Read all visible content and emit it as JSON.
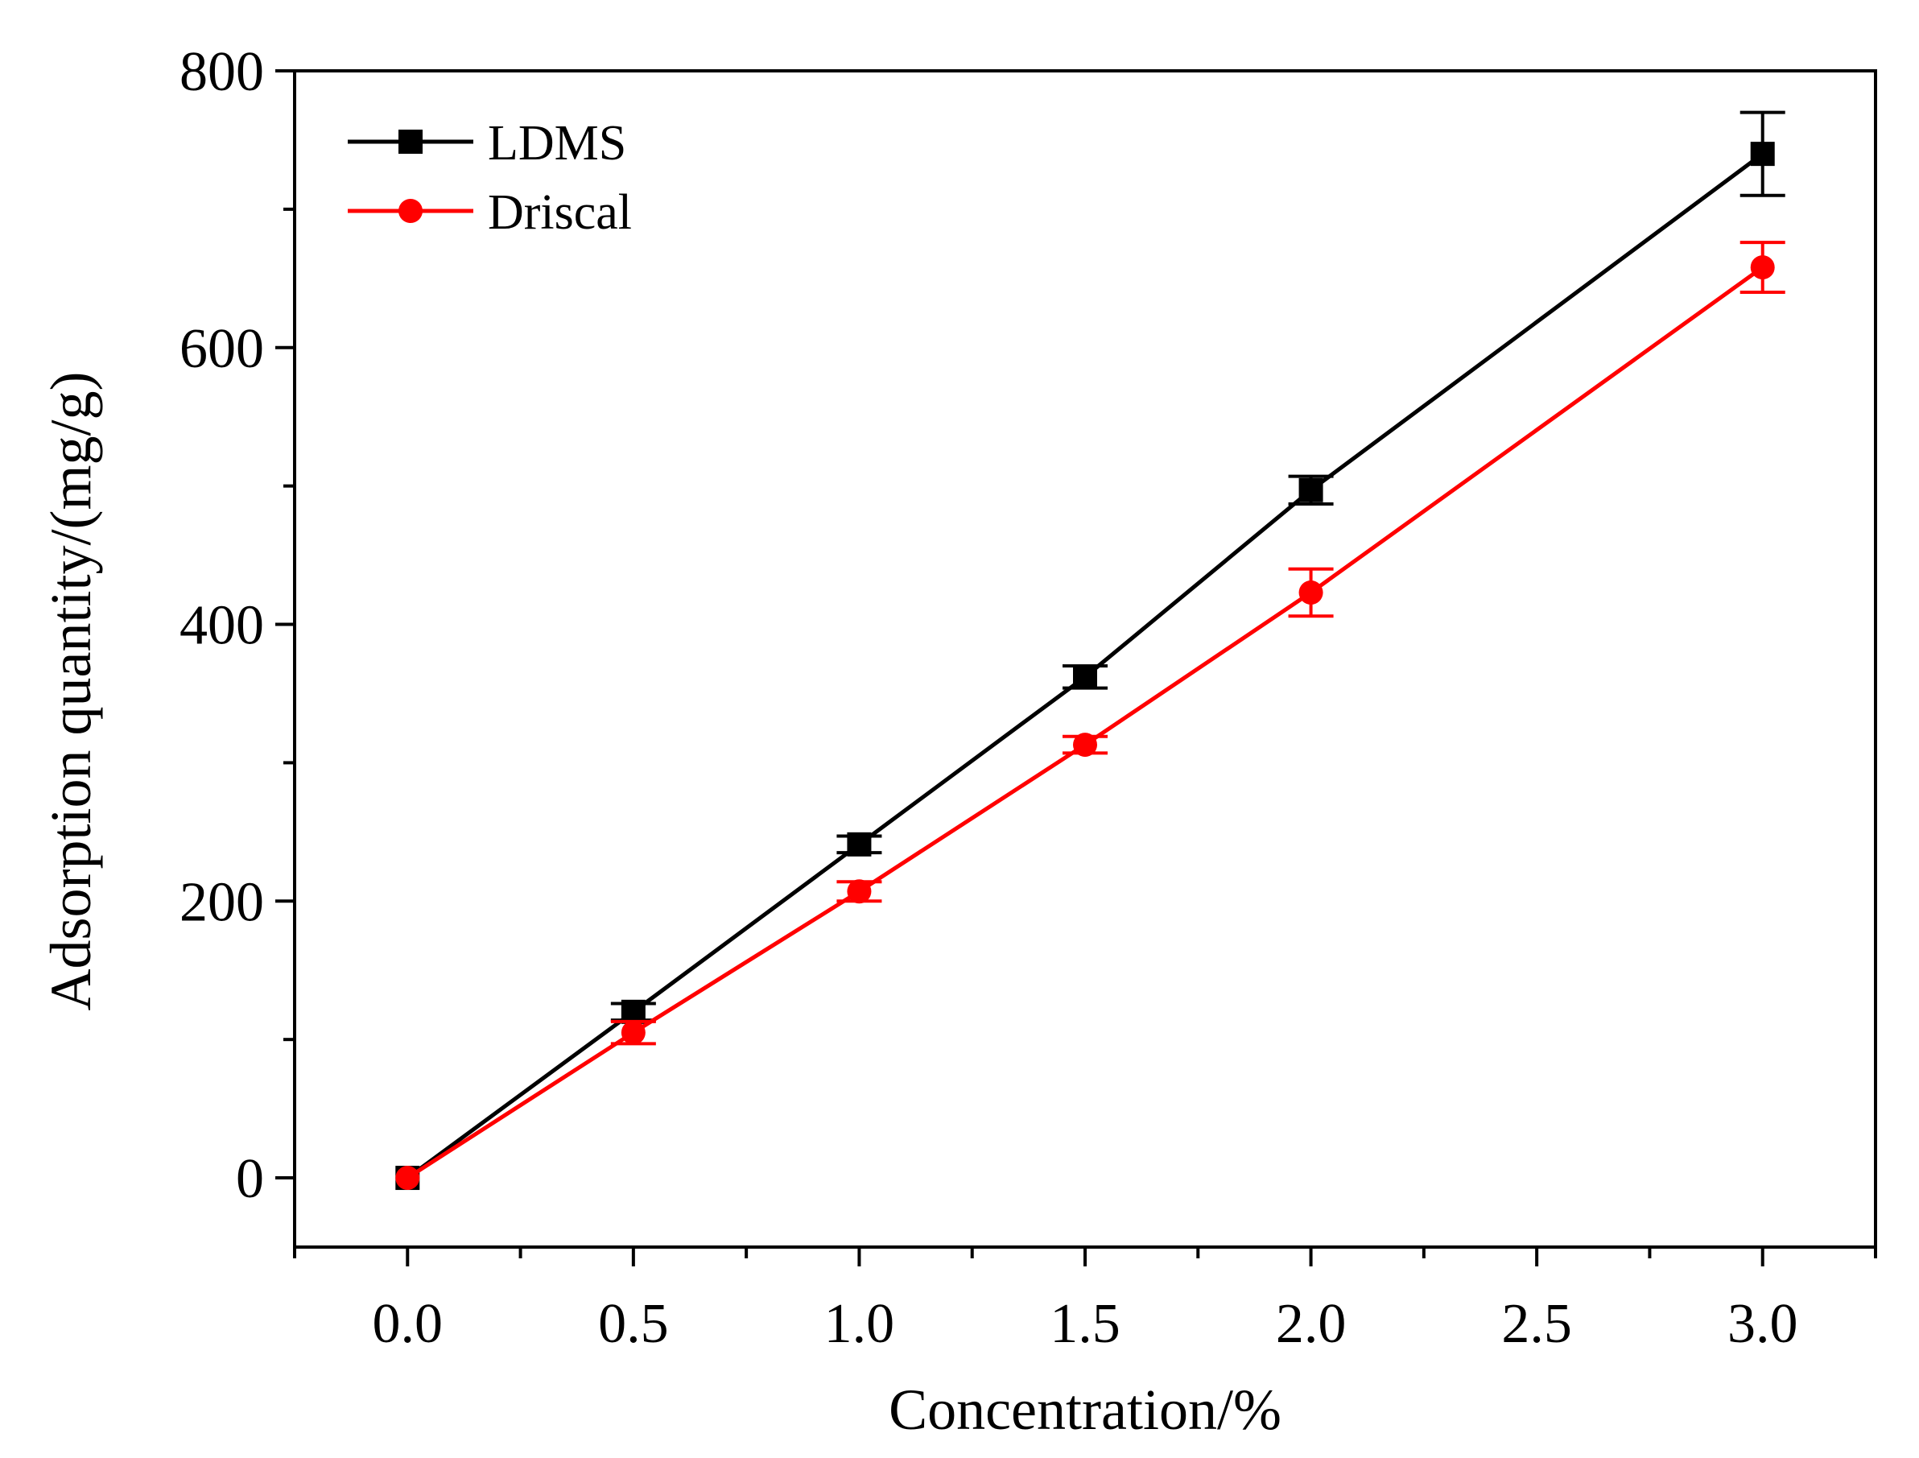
{
  "chart_data": {
    "type": "line",
    "title": "",
    "xlabel": "Concentration/%",
    "ylabel": "Adsorption quantity/(mg/g)",
    "xlim": [
      -0.25,
      3.25
    ],
    "ylim": [
      -50,
      800
    ],
    "x_major_ticks": [
      0.0,
      0.5,
      1.0,
      1.5,
      2.0,
      2.5,
      3.0
    ],
    "x_tick_labels": [
      "0.0",
      "0.5",
      "1.0",
      "1.5",
      "2.0",
      "2.5",
      "3.0"
    ],
    "y_major_ticks": [
      0,
      200,
      400,
      600,
      800
    ],
    "y_tick_labels": [
      "0",
      "200",
      "400",
      "600",
      "800"
    ],
    "grid": false,
    "legend_position": "top-left",
    "series": [
      {
        "name": "LDMS",
        "color": "#000000",
        "marker": "square",
        "x": [
          0,
          0.5,
          1.0,
          1.5,
          2.0,
          3.0
        ],
        "y": [
          0,
          120,
          241,
          362,
          497,
          740
        ],
        "error": [
          0,
          6,
          6,
          8,
          10,
          30
        ]
      },
      {
        "name": "Driscal",
        "color": "#ff0000",
        "marker": "circle",
        "x": [
          0,
          0.5,
          1.0,
          1.5,
          2.0,
          3.0
        ],
        "y": [
          0,
          105,
          207,
          313,
          423,
          658
        ],
        "error": [
          0,
          8,
          7,
          6,
          17,
          18
        ]
      }
    ]
  }
}
